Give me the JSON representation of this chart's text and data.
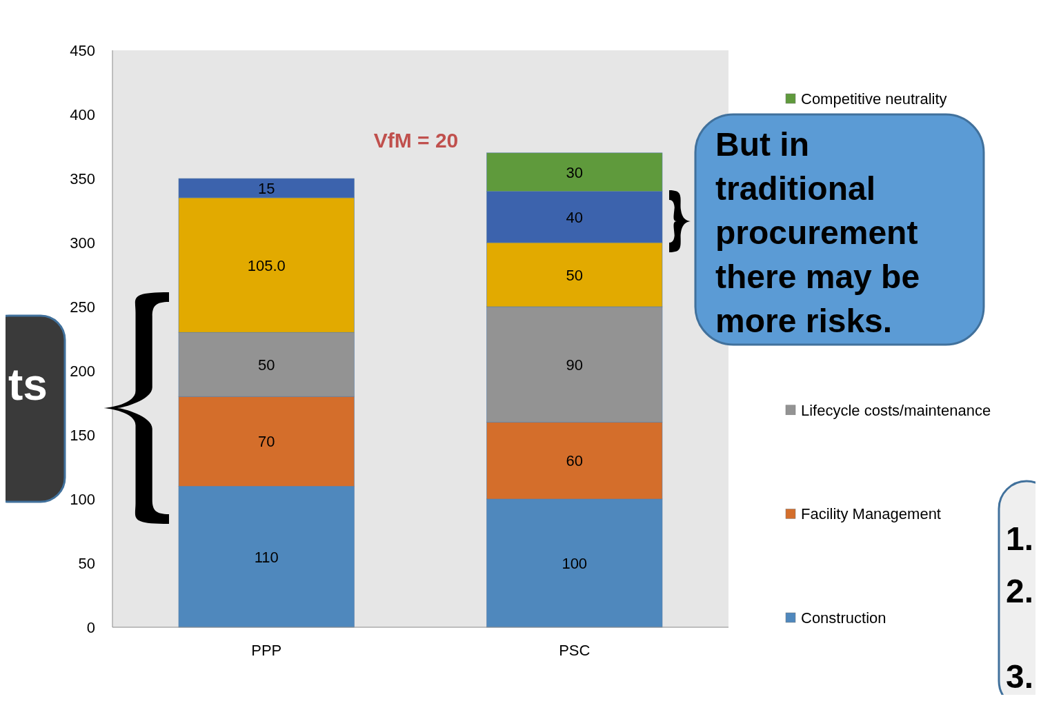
{
  "chart_data": {
    "type": "bar",
    "stacked": true,
    "categories": [
      "PPP",
      "PSC"
    ],
    "series": [
      {
        "name": "Construction",
        "color": "#4f88bd",
        "values": [
          110,
          100
        ],
        "value_labels": [
          "110",
          "100"
        ]
      },
      {
        "name": "Facility Management",
        "color": "#d46e2b",
        "values": [
          70,
          60
        ],
        "value_labels": [
          "70",
          "60"
        ]
      },
      {
        "name": "Lifecycle costs/maintenance",
        "color": "#939393",
        "values": [
          50,
          90
        ],
        "value_labels": [
          "50",
          "90"
        ]
      },
      {
        "color": "#e2aa00",
        "values": [
          105,
          50
        ],
        "value_labels": [
          "105.0",
          "50"
        ]
      },
      {
        "color": "#3c63ad",
        "values": [
          15,
          40
        ],
        "value_labels": [
          "15",
          "40"
        ]
      },
      {
        "name": "Competitive neutrality",
        "color": "#5f9a3c",
        "values": [
          null,
          30
        ],
        "value_labels": [
          null,
          "30"
        ]
      }
    ],
    "ylim": [
      0,
      450
    ],
    "yticks": [
      0,
      50,
      100,
      150,
      200,
      250,
      300,
      350,
      400,
      450
    ],
    "grid": false,
    "legend": "right",
    "annotations": [
      "VfM = 20",
      "But in traditional procurement there may be more risks.",
      "ts",
      "1.",
      "2.",
      "3."
    ]
  }
}
